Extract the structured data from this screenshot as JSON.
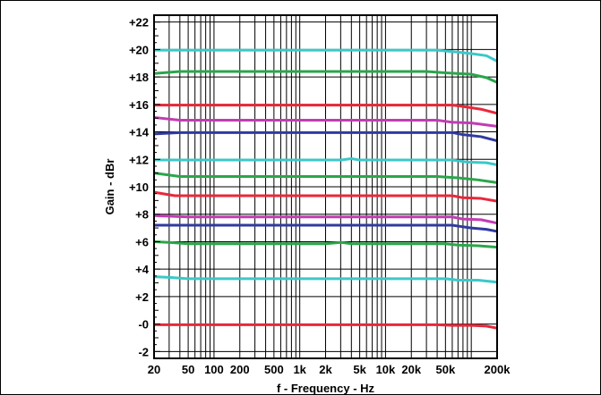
{
  "chart_data": {
    "type": "line",
    "title": "",
    "xlabel": "f - Frequency - Hz",
    "ylabel": "Gain - dBr",
    "xscale": "log",
    "xlim": [
      20,
      200000
    ],
    "ylim": [
      -2.5,
      22.5
    ],
    "grid": true,
    "legend": "none",
    "x_tick_labels": [
      {
        "value": 20,
        "label": "20"
      },
      {
        "value": 50,
        "label": "50"
      },
      {
        "value": 100,
        "label": "100"
      },
      {
        "value": 200,
        "label": "200"
      },
      {
        "value": 500,
        "label": "500"
      },
      {
        "value": 1000,
        "label": "1k"
      },
      {
        "value": 2000,
        "label": "2k"
      },
      {
        "value": 5000,
        "label": "5k"
      },
      {
        "value": 10000,
        "label": "10k"
      },
      {
        "value": 20000,
        "label": "20k"
      },
      {
        "value": 50000,
        "label": "50k"
      },
      {
        "value": 200000,
        "label": "200k"
      }
    ],
    "y_tick_labels": [
      {
        "value": -2,
        "label": "-2"
      },
      {
        "value": 0,
        "label": "-0"
      },
      {
        "value": 2,
        "label": "+2"
      },
      {
        "value": 4,
        "label": "+4"
      },
      {
        "value": 6,
        "label": "+6"
      },
      {
        "value": 8,
        "label": "+8"
      },
      {
        "value": 10,
        "label": "+10"
      },
      {
        "value": 12,
        "label": "+12"
      },
      {
        "value": 14,
        "label": "+14"
      },
      {
        "value": 16,
        "label": "+16"
      },
      {
        "value": 18,
        "label": "+18"
      },
      {
        "value": 20,
        "label": "+20"
      },
      {
        "value": 22,
        "label": "+22"
      }
    ],
    "series": [
      {
        "color": "#e8283a",
        "points": [
          [
            20,
            -0.05
          ],
          [
            100,
            -0.05
          ],
          [
            1000,
            -0.05
          ],
          [
            10000,
            -0.05
          ],
          [
            40000,
            -0.05
          ],
          [
            60000,
            -0.1
          ],
          [
            100000,
            -0.1
          ],
          [
            150000,
            -0.15
          ],
          [
            200000,
            -0.3
          ]
        ]
      },
      {
        "color": "#3cc8c8",
        "points": [
          [
            20,
            3.45
          ],
          [
            30,
            3.4
          ],
          [
            50,
            3.3
          ],
          [
            100,
            3.3
          ],
          [
            1000,
            3.3
          ],
          [
            10000,
            3.3
          ],
          [
            50000,
            3.3
          ],
          [
            70000,
            3.2
          ],
          [
            120000,
            3.2
          ],
          [
            200000,
            3.05
          ]
        ]
      },
      {
        "color": "#2aa64a",
        "points": [
          [
            20,
            6.0
          ],
          [
            30,
            5.95
          ],
          [
            50,
            5.85
          ],
          [
            100,
            5.85
          ],
          [
            1000,
            5.85
          ],
          [
            2000,
            5.85
          ],
          [
            3000,
            5.95
          ],
          [
            4000,
            5.85
          ],
          [
            10000,
            5.85
          ],
          [
            50000,
            5.85
          ],
          [
            70000,
            5.75
          ],
          [
            120000,
            5.7
          ],
          [
            200000,
            5.6
          ]
        ]
      },
      {
        "color": "#303aa0",
        "points": [
          [
            20,
            7.2
          ],
          [
            100,
            7.2
          ],
          [
            1000,
            7.2
          ],
          [
            10000,
            7.2
          ],
          [
            60000,
            7.2
          ],
          [
            100000,
            7.0
          ],
          [
            150000,
            6.9
          ],
          [
            200000,
            6.75
          ]
        ]
      },
      {
        "color": "#c23cb4",
        "points": [
          [
            20,
            7.9
          ],
          [
            50,
            7.8
          ],
          [
            100,
            7.8
          ],
          [
            1000,
            7.8
          ],
          [
            10000,
            7.8
          ],
          [
            60000,
            7.8
          ],
          [
            80000,
            7.65
          ],
          [
            130000,
            7.6
          ],
          [
            200000,
            7.35
          ]
        ]
      },
      {
        "color": "#e8283a",
        "points": [
          [
            20,
            9.6
          ],
          [
            35,
            9.35
          ],
          [
            60,
            9.35
          ],
          [
            1000,
            9.35
          ],
          [
            10000,
            9.35
          ],
          [
            60000,
            9.35
          ],
          [
            80000,
            9.2
          ],
          [
            130000,
            9.15
          ],
          [
            200000,
            8.95
          ]
        ]
      },
      {
        "color": "#2aa64a",
        "points": [
          [
            20,
            11.0
          ],
          [
            40,
            10.75
          ],
          [
            100,
            10.75
          ],
          [
            1000,
            10.75
          ],
          [
            10000,
            10.75
          ],
          [
            40000,
            10.75
          ],
          [
            70000,
            10.65
          ],
          [
            120000,
            10.5
          ],
          [
            200000,
            10.3
          ]
        ]
      },
      {
        "color": "#3cc8c8",
        "points": [
          [
            20,
            11.95
          ],
          [
            100,
            11.95
          ],
          [
            1000,
            11.95
          ],
          [
            3000,
            11.95
          ],
          [
            4000,
            12.05
          ],
          [
            5000,
            11.95
          ],
          [
            10000,
            11.95
          ],
          [
            60000,
            11.95
          ],
          [
            90000,
            11.8
          ],
          [
            150000,
            11.75
          ],
          [
            200000,
            11.6
          ]
        ]
      },
      {
        "color": "#303aa0",
        "points": [
          [
            20,
            13.85
          ],
          [
            40,
            13.95
          ],
          [
            100,
            13.95
          ],
          [
            1000,
            13.95
          ],
          [
            10000,
            13.95
          ],
          [
            60000,
            13.95
          ],
          [
            80000,
            13.8
          ],
          [
            130000,
            13.65
          ],
          [
            200000,
            13.35
          ]
        ]
      },
      {
        "color": "#c23cb4",
        "points": [
          [
            20,
            15.05
          ],
          [
            40,
            14.85
          ],
          [
            100,
            14.85
          ],
          [
            1000,
            14.85
          ],
          [
            10000,
            14.85
          ],
          [
            40000,
            14.85
          ],
          [
            60000,
            14.7
          ],
          [
            100000,
            14.65
          ],
          [
            200000,
            14.4
          ]
        ]
      },
      {
        "color": "#e8283a",
        "points": [
          [
            20,
            15.95
          ],
          [
            100,
            15.95
          ],
          [
            1000,
            15.95
          ],
          [
            10000,
            15.95
          ],
          [
            60000,
            15.95
          ],
          [
            80000,
            15.85
          ],
          [
            130000,
            15.65
          ],
          [
            200000,
            15.35
          ]
        ]
      },
      {
        "color": "#2aa64a",
        "points": [
          [
            20,
            18.25
          ],
          [
            40,
            18.4
          ],
          [
            100,
            18.4
          ],
          [
            1000,
            18.4
          ],
          [
            10000,
            18.4
          ],
          [
            30000,
            18.4
          ],
          [
            50000,
            18.3
          ],
          [
            100000,
            18.2
          ],
          [
            150000,
            17.95
          ],
          [
            200000,
            17.6
          ]
        ]
      },
      {
        "color": "#3cc8c8",
        "points": [
          [
            20,
            19.95
          ],
          [
            100,
            19.95
          ],
          [
            1000,
            19.95
          ],
          [
            10000,
            19.95
          ],
          [
            40000,
            19.95
          ],
          [
            60000,
            19.85
          ],
          [
            100000,
            19.7
          ],
          [
            150000,
            19.55
          ],
          [
            200000,
            19.15
          ]
        ]
      }
    ]
  }
}
